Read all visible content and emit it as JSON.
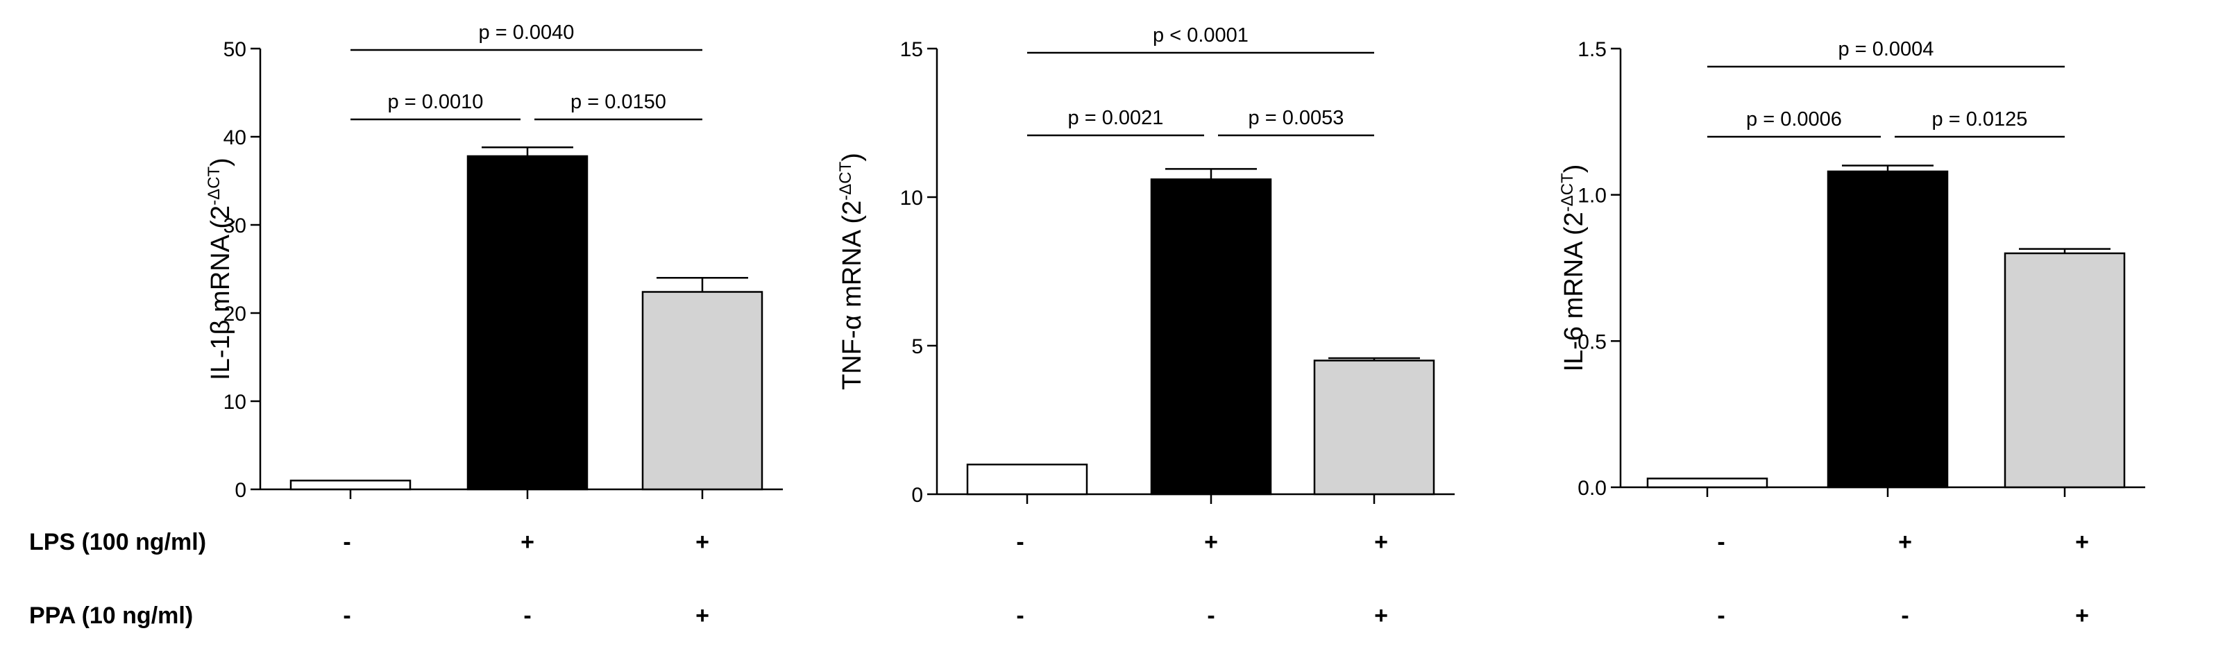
{
  "conditions": [
    {
      "label": "LPS (100  ng/ml)",
      "marks": [
        "-",
        "+",
        "+"
      ]
    },
    {
      "label": "PPA (10 ng/ml)",
      "marks": [
        "-",
        "-",
        "+"
      ]
    }
  ],
  "chart_data": [
    {
      "type": "bar",
      "ylabel": "IL-1β mRNA (2",
      "ylabel_sup": "-ΔCT",
      "ylabel_close": ")",
      "ylim": [
        0,
        50
      ],
      "yticks": [
        "0",
        "10",
        "20",
        "30",
        "40",
        "50"
      ],
      "values": [
        1.0,
        37.8,
        22.4
      ],
      "errors": [
        0,
        1.0,
        1.6
      ],
      "bar_colors": [
        "#ffffff",
        "#000000",
        "#d3d3d3"
      ],
      "comparisons": [
        {
          "from": 0,
          "to": 2,
          "label": "p = 0.0040",
          "level": 2
        },
        {
          "from": 0,
          "to": 1,
          "label": "p = 0.0010",
          "level": 1
        },
        {
          "from": 1,
          "to": 2,
          "label": "p = 0.0150",
          "level": 1
        }
      ]
    },
    {
      "type": "bar",
      "ylabel": "TNF-α mRNA (2",
      "ylabel_sup": "-ΔCT",
      "ylabel_close": ")",
      "ylim": [
        0,
        15
      ],
      "yticks": [
        "0",
        "5",
        "10",
        "15"
      ],
      "values": [
        1.0,
        10.6,
        4.5
      ],
      "errors": [
        0,
        0.35,
        0.08
      ],
      "bar_colors": [
        "#ffffff",
        "#000000",
        "#d3d3d3"
      ],
      "comparisons": [
        {
          "from": 0,
          "to": 2,
          "label": "p < 0.0001",
          "level": 2
        },
        {
          "from": 0,
          "to": 1,
          "label": "p = 0.0021",
          "level": 1
        },
        {
          "from": 1,
          "to": 2,
          "label": "p = 0.0053",
          "level": 1
        }
      ]
    },
    {
      "type": "bar",
      "ylabel": "IL-6 mRNA  (2",
      "ylabel_sup": "-ΔCT",
      "ylabel_close": ")",
      "ylim": [
        0,
        1.5
      ],
      "yticks": [
        "0.0",
        "0.5",
        "1.0",
        "1.5"
      ],
      "values": [
        0.03,
        1.08,
        0.8
      ],
      "errors": [
        0,
        0.02,
        0.015
      ],
      "bar_colors": [
        "#ffffff",
        "#000000",
        "#d3d3d3"
      ],
      "comparisons": [
        {
          "from": 0,
          "to": 2,
          "label": "p = 0.0004",
          "level": 2
        },
        {
          "from": 0,
          "to": 1,
          "label": "p = 0.0006",
          "level": 1
        },
        {
          "from": 1,
          "to": 2,
          "label": "p = 0.0125",
          "level": 1
        }
      ]
    }
  ]
}
